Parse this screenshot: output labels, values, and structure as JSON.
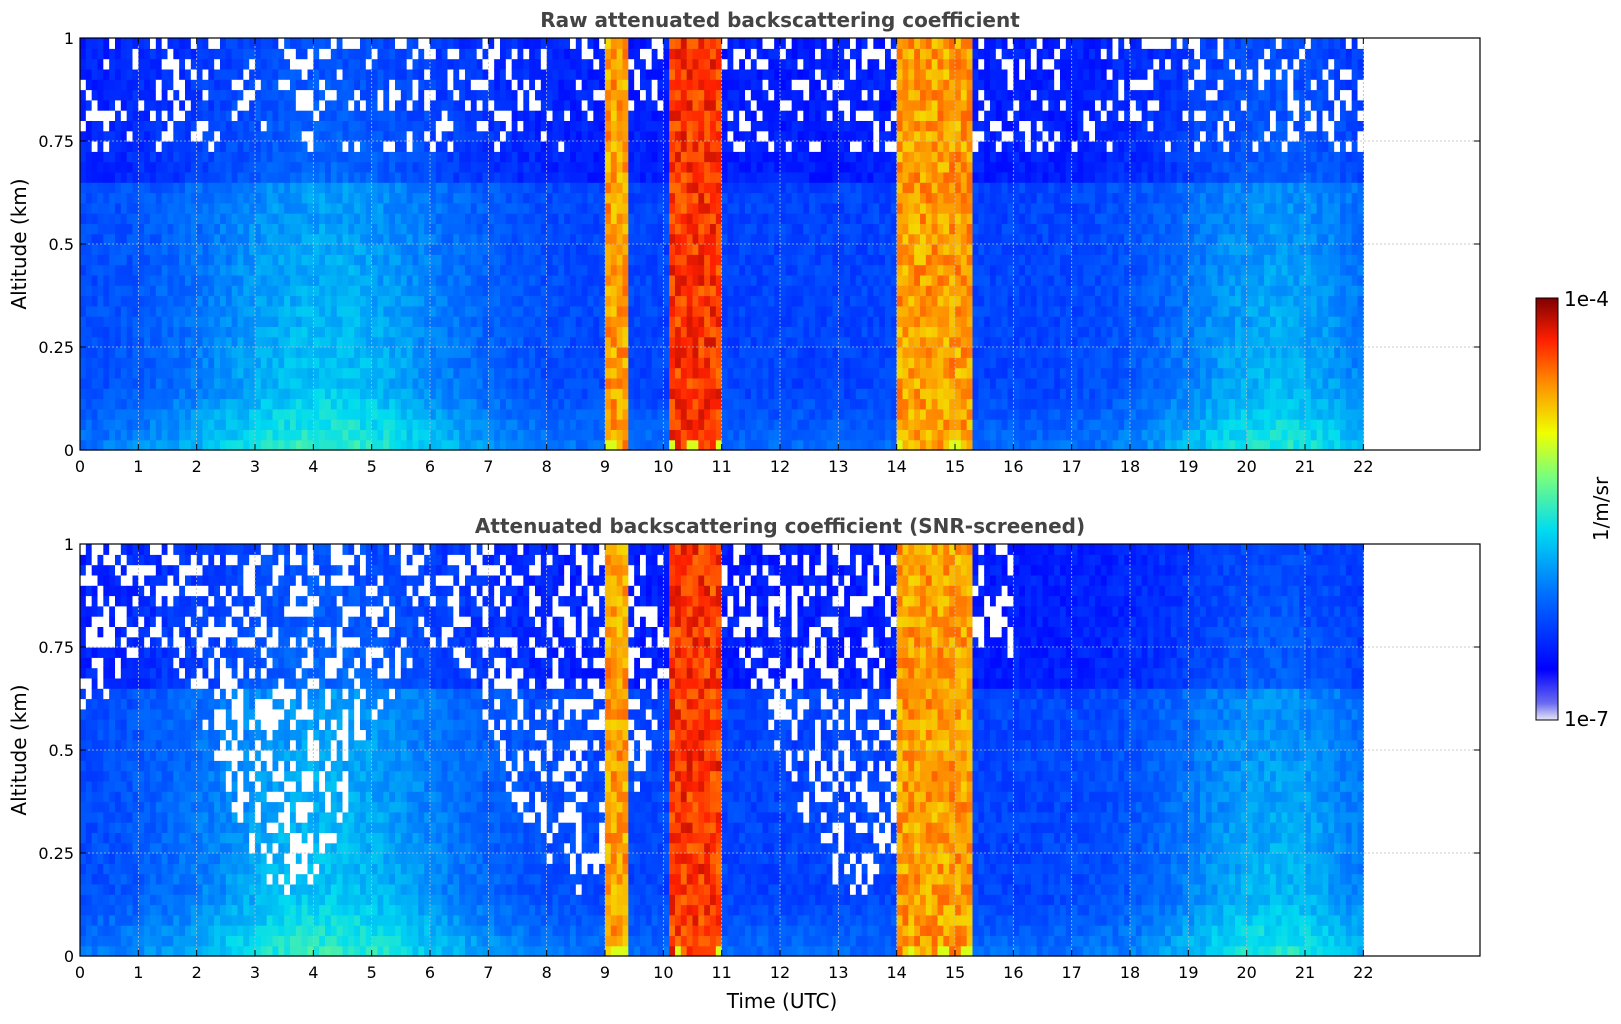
{
  "figure": {
    "colorbar": {
      "label": "1/m/sr",
      "max_label": "1e-4",
      "min_label": "1e-7",
      "scale": "log",
      "colormap": "jet"
    }
  },
  "chart_data": [
    {
      "type": "heatmap",
      "title": "Raw attenuated backscattering coefficient",
      "xlabel": "",
      "ylabel": "Altitude (km)",
      "xlim": [
        0,
        24
      ],
      "ylim": [
        0,
        1
      ],
      "x_ticks": [
        "0",
        "1",
        "2",
        "3",
        "4",
        "5",
        "6",
        "7",
        "8",
        "9",
        "10",
        "11",
        "12",
        "13",
        "14",
        "15",
        "16",
        "17",
        "18",
        "19",
        "20",
        "21",
        "22"
      ],
      "y_ticks": [
        "0",
        "0.25",
        "0.5",
        "0.75",
        "1"
      ],
      "grid": true,
      "data_x_range": [
        0,
        22
      ],
      "cloud_bands": [
        {
          "start": 9.0,
          "end": 9.4,
          "level": "high"
        },
        {
          "start": 10.1,
          "end": 11.0,
          "level": "very-high"
        },
        {
          "start": 14.0,
          "end": 15.3,
          "level": "high"
        }
      ]
    },
    {
      "type": "heatmap",
      "title": "Attenuated backscattering coefficient (SNR-screened)",
      "xlabel": "Time (UTC)",
      "ylabel": "Altitude (km)",
      "xlim": [
        0,
        24
      ],
      "ylim": [
        0,
        1
      ],
      "x_ticks": [
        "0",
        "1",
        "2",
        "3",
        "4",
        "5",
        "6",
        "7",
        "8",
        "9",
        "10",
        "11",
        "12",
        "13",
        "14",
        "15",
        "16",
        "17",
        "18",
        "19",
        "20",
        "21",
        "22"
      ],
      "y_ticks": [
        "0",
        "0.25",
        "0.5",
        "0.75",
        "1"
      ],
      "grid": true,
      "data_x_range": [
        0,
        22
      ],
      "cloud_bands": [
        {
          "start": 9.0,
          "end": 9.4,
          "level": "high"
        },
        {
          "start": 10.1,
          "end": 11.0,
          "level": "very-high"
        },
        {
          "start": 14.0,
          "end": 15.3,
          "level": "high"
        }
      ]
    }
  ]
}
